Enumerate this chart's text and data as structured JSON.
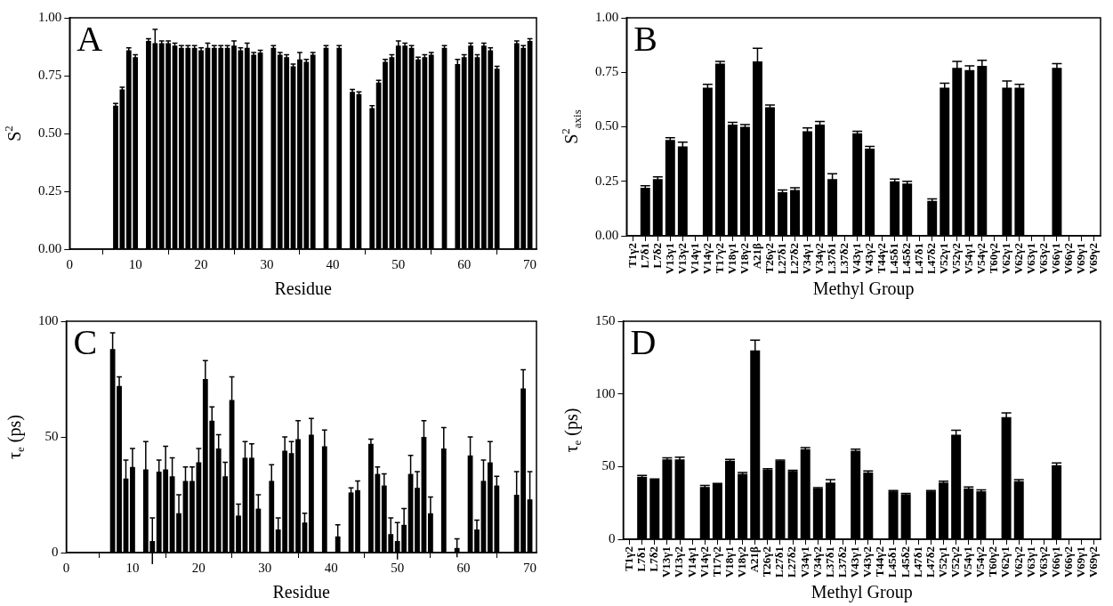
{
  "chart_data": [
    {
      "type": "bar",
      "annotations": [
        "A"
      ],
      "xlabel": "Residue",
      "ylabel": "S$^{2}$",
      "x": [
        7,
        8,
        9,
        10,
        12,
        13,
        14,
        15,
        16,
        17,
        18,
        19,
        20,
        21,
        22,
        23,
        24,
        25,
        26,
        27,
        28,
        29,
        31,
        32,
        33,
        34,
        35,
        36,
        37,
        39,
        41,
        43,
        44,
        46,
        47,
        48,
        49,
        50,
        51,
        52,
        53,
        54,
        55,
        57,
        59,
        60,
        61,
        62,
        63,
        64,
        65,
        68,
        69,
        70
      ],
      "values": [
        0.62,
        0.69,
        0.86,
        0.83,
        0.9,
        0.89,
        0.89,
        0.89,
        0.88,
        0.87,
        0.87,
        0.87,
        0.86,
        0.87,
        0.87,
        0.87,
        0.87,
        0.88,
        0.86,
        0.87,
        0.84,
        0.85,
        0.87,
        0.84,
        0.83,
        0.79,
        0.82,
        0.81,
        0.84,
        0.87,
        0.87,
        0.68,
        0.67,
        0.61,
        0.72,
        0.81,
        0.83,
        0.88,
        0.88,
        0.87,
        0.82,
        0.83,
        0.84,
        0.87,
        0.8,
        0.83,
        0.88,
        0.83,
        0.88,
        0.86,
        0.78,
        0.89,
        0.87,
        0.9
      ],
      "errors": [
        0.01,
        0.01,
        0.01,
        0.01,
        0.01,
        0.06,
        0.01,
        0.01,
        0.01,
        0.01,
        0.01,
        0.01,
        0.01,
        0.02,
        0.01,
        0.01,
        0.01,
        0.02,
        0.01,
        0.02,
        0.01,
        0.01,
        0.01,
        0.01,
        0.01,
        0.01,
        0.03,
        0.01,
        0.01,
        0.01,
        0.01,
        0.01,
        0.01,
        0.01,
        0.01,
        0.01,
        0.01,
        0.02,
        0.01,
        0.01,
        0.01,
        0.01,
        0.01,
        0.01,
        0.02,
        0.01,
        0.01,
        0.01,
        0.01,
        0.01,
        0.01,
        0.01,
        0.01,
        0.01
      ],
      "color": "#000000",
      "xlim": [
        0,
        71
      ],
      "xticks": [
        0,
        10,
        20,
        30,
        40,
        50,
        60,
        70
      ],
      "ylim": [
        0,
        1
      ],
      "yticks": [
        {
          "value": 0,
          "label": "0.00"
        },
        {
          "value": 0.25,
          "label": "0.25"
        },
        {
          "value": 0.5,
          "label": "0.50"
        },
        {
          "value": 0.75,
          "label": "0.75"
        },
        {
          "value": 1,
          "label": "1.00"
        }
      ]
    },
    {
      "type": "bar",
      "annotations": [
        "B"
      ],
      "xlabel": "Methyl Group",
      "ylabel": "S$^{2}$$_{axis}$",
      "categories": [
        "T1γ2",
        "L7δ1",
        "L7δ2",
        "V13γ1",
        "V13γ2",
        "V14γ1",
        "V14γ2",
        "T17γ2",
        "V18γ1",
        "V18γ2",
        "A21β",
        "T26γ2",
        "L27δ1",
        "L27δ2",
        "V34γ1",
        "V34γ2",
        "L37δ1",
        "L37δ2",
        "V43γ1",
        "V43γ2",
        "T44γ2",
        "L45δ1",
        "L45δ2",
        "L47δ1",
        "L47δ2",
        "V52γ1",
        "V52γ2",
        "V54γ1",
        "V54γ2",
        "T60γ2",
        "V62γ1",
        "V62γ2",
        "V63γ1",
        "V63γ2",
        "V66γ1",
        "V66γ2",
        "V69γ1",
        "V69γ2"
      ],
      "values": [
        null,
        0.22,
        0.26,
        0.44,
        0.41,
        null,
        0.68,
        0.79,
        0.51,
        0.5,
        0.8,
        0.59,
        0.2,
        0.21,
        0.48,
        0.51,
        0.26,
        null,
        0.47,
        0.4,
        null,
        0.25,
        0.24,
        null,
        0.16,
        0.68,
        0.77,
        0.76,
        0.78,
        null,
        0.68,
        0.68,
        null,
        null,
        0.77,
        null,
        null,
        null
      ],
      "errors": [
        null,
        0.01,
        0.01,
        0.01,
        0.02,
        null,
        0.015,
        0.01,
        0.01,
        0.01,
        0.06,
        0.01,
        0.01,
        0.01,
        0.015,
        0.015,
        0.025,
        null,
        0.01,
        0.01,
        null,
        0.01,
        0.01,
        null,
        0.01,
        0.02,
        0.03,
        0.02,
        0.025,
        null,
        0.03,
        0.015,
        null,
        null,
        0.02,
        null,
        null,
        null
      ],
      "color": "#000000",
      "ylim": [
        0,
        1
      ],
      "yticks": [
        {
          "value": 0,
          "label": "0.00"
        },
        {
          "value": 0.25,
          "label": "0.25"
        },
        {
          "value": 0.5,
          "label": "0.50"
        },
        {
          "value": 0.75,
          "label": "0.75"
        },
        {
          "value": 1,
          "label": "1.00"
        }
      ]
    },
    {
      "type": "bar",
      "annotations": [
        "C"
      ],
      "xlabel": "Residue",
      "ylabel": "τ$_{e}$ (ps)",
      "x": [
        7,
        8,
        9,
        10,
        12,
        13,
        14,
        15,
        16,
        17,
        18,
        19,
        20,
        21,
        22,
        23,
        24,
        25,
        26,
        27,
        28,
        29,
        31,
        32,
        33,
        34,
        35,
        36,
        37,
        39,
        41,
        43,
        44,
        46,
        47,
        48,
        49,
        50,
        51,
        52,
        53,
        54,
        55,
        57,
        59,
        60,
        61,
        62,
        63,
        64,
        65,
        68,
        69,
        70
      ],
      "values": [
        88,
        72,
        32,
        37,
        36,
        5,
        35,
        36,
        33,
        17,
        31,
        31,
        39,
        75,
        57,
        45,
        33,
        66,
        16,
        41,
        41,
        19,
        31,
        10,
        44,
        43,
        49,
        13,
        51,
        46,
        7,
        26,
        27,
        47,
        34,
        29,
        8,
        5,
        12,
        34,
        28,
        50,
        17,
        45,
        2,
        0.3,
        42,
        10,
        31,
        39,
        29,
        25,
        71,
        23
      ],
      "errors": [
        7,
        4,
        8,
        8,
        12,
        10,
        5,
        10,
        8,
        8,
        6,
        6,
        6,
        8,
        6,
        6,
        6,
        10,
        5,
        7,
        6,
        6,
        7,
        5,
        6,
        5,
        8,
        4,
        7,
        7,
        5,
        2,
        4,
        2,
        3,
        5,
        7,
        8,
        7,
        8,
        7,
        7,
        7,
        9,
        4,
        null,
        8,
        4,
        9,
        9,
        4,
        10,
        8,
        12
      ],
      "color": "#000000",
      "xlim": [
        0,
        71
      ],
      "xticks": [
        0,
        10,
        20,
        30,
        40,
        50,
        60,
        70
      ],
      "ylim": [
        0,
        100
      ],
      "yticks": [
        0,
        50,
        100
      ]
    },
    {
      "type": "bar",
      "annotations": [
        "D"
      ],
      "xlabel": "Methyl Group",
      "ylabel": "τ$_{e}$ (ps)",
      "categories": [
        "T1γ2",
        "L7δ1",
        "L7δ2",
        "V13γ1",
        "V13γ2",
        "V14γ1",
        "V14γ2",
        "T17γ2",
        "V18γ1",
        "V18γ2",
        "A21β",
        "T26γ2",
        "L27δ1",
        "L27δ2",
        "V34γ1",
        "V34γ2",
        "L37δ1",
        "L37δ2",
        "V43γ1",
        "V43γ2",
        "T44γ2",
        "L45δ1",
        "L45δ2",
        "L47δ1",
        "L47δ2",
        "V52γ1",
        "V52γ2",
        "V54γ1",
        "V54γ2",
        "T60γ2",
        "V62γ1",
        "V62γ2",
        "V63γ1",
        "V63γ2",
        "V66γ1",
        "V66γ2",
        "V69γ1",
        "V69γ2"
      ],
      "values": [
        null,
        43,
        41,
        55,
        55,
        null,
        36,
        38,
        54,
        45,
        130,
        48,
        54,
        47,
        62,
        35,
        39,
        null,
        61,
        46,
        null,
        33,
        31,
        null,
        33,
        39,
        72,
        35,
        33,
        null,
        84,
        40,
        null,
        null,
        51,
        null,
        null,
        null
      ],
      "errors": [
        null,
        1,
        0.5,
        1,
        1.5,
        null,
        1,
        0.5,
        1,
        1,
        7,
        0.5,
        0.5,
        0.5,
        1,
        0.5,
        2,
        null,
        1,
        1,
        null,
        0.5,
        0.5,
        null,
        0.5,
        1,
        3,
        1,
        1,
        null,
        3,
        1,
        null,
        null,
        1.5,
        null,
        null,
        null
      ],
      "color": "#000000",
      "ylim": [
        0,
        150
      ],
      "yticks": [
        0,
        50,
        100,
        150
      ]
    }
  ]
}
